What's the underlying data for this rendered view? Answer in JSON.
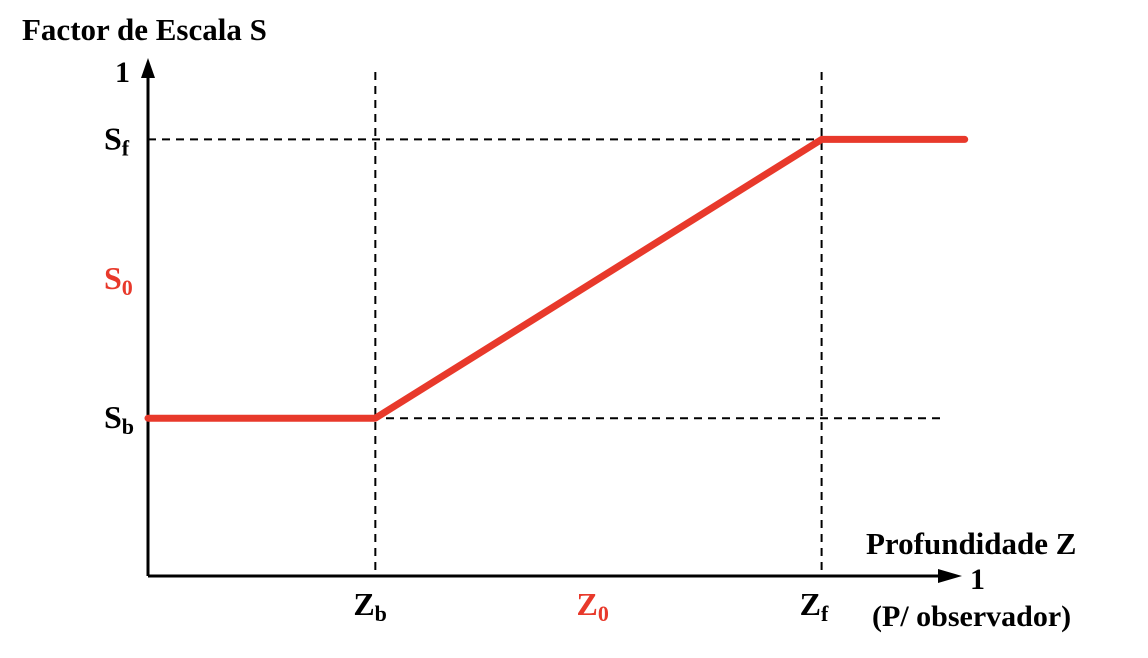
{
  "chart_data": {
    "type": "line",
    "title": "Factor de Escala S",
    "xlabel": "Profundidade Z",
    "xlabel_note": "(P/ observador)",
    "x_axis_end_label": "1",
    "y_axis_end_label": "1",
    "x_ticks": [
      {
        "main": "Z",
        "sub": "b",
        "highlight": false
      },
      {
        "main": "Z",
        "sub": "0",
        "highlight": true
      },
      {
        "main": "Z",
        "sub": "f",
        "highlight": false
      }
    ],
    "y_ticks": [
      {
        "main": "S",
        "sub": "f",
        "highlight": false
      },
      {
        "main": "S",
        "sub": "0",
        "highlight": true
      },
      {
        "main": "S",
        "sub": "b",
        "highlight": false
      }
    ],
    "xlim": [
      0,
      1
    ],
    "ylim": [
      0,
      1
    ],
    "z_b": 0.27,
    "z_f": 0.8,
    "s_b": 0.3,
    "s_f": 0.83,
    "series": [
      {
        "values": [
          [
            0,
            0.3
          ],
          [
            0.27,
            0.3
          ],
          [
            0.8,
            0.83
          ],
          [
            0.97,
            0.83
          ]
        ]
      }
    ],
    "grid": false,
    "colors": {
      "curve": "#e8392b",
      "axis": "#000000",
      "highlight": "#e8392b"
    }
  }
}
